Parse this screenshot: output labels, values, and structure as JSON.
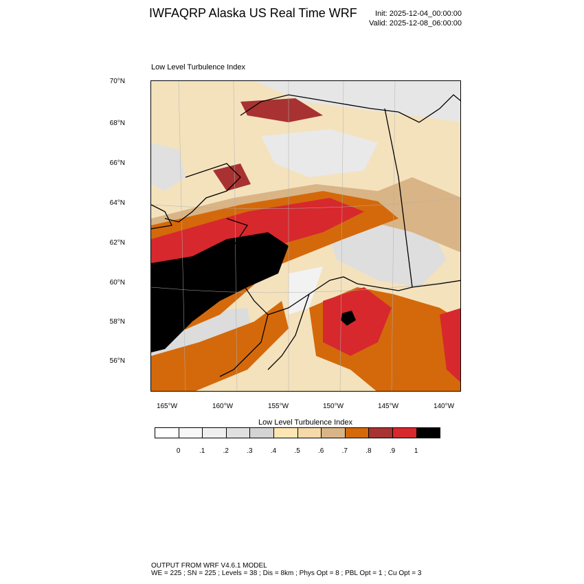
{
  "header": {
    "title": "IWFAQRP Alaska US Real Time WRF",
    "init": "Init: 2025-12-04_00:00:00",
    "valid": "Valid: 2025-12-08_06:00:00"
  },
  "plot": {
    "title": "Low Level Turbulence Index",
    "lat_labels": [
      "70°N",
      "68°N",
      "66°N",
      "64°N",
      "62°N",
      "60°N",
      "58°N",
      "56°N"
    ],
    "lon_labels": [
      "165°W",
      "160°W",
      "155°W",
      "150°W",
      "145°W",
      "140°W"
    ]
  },
  "colorbar": {
    "title": "Low Level Turbulence Index",
    "colors": [
      "#ffffff",
      "#f7f7f7",
      "#efefef",
      "#e0e0e0",
      "#d4d4d4",
      "#fde6b4",
      "#f5d9a8",
      "#d9b486",
      "#d4690b",
      "#a83232",
      "#d7282e",
      "#000000"
    ],
    "labels": [
      "0",
      ".1",
      ".2",
      ".3",
      ".4",
      ".5",
      ".6",
      ".7",
      ".8",
      ".9",
      "1"
    ]
  },
  "footer": {
    "line1": "OUTPUT FROM WRF V4.6.1 MODEL",
    "line2": "WE = 225 ; SN = 225 ; Levels = 38 ; Dis = 8km ; Phys Opt = 8 ; PBL Opt = 1 ; Cu Opt = 3"
  }
}
